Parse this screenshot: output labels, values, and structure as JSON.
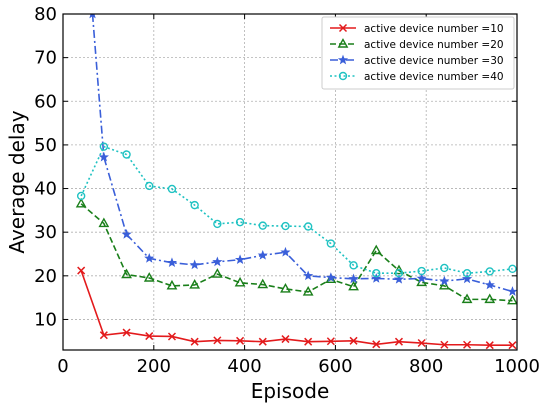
{
  "chart_data": {
    "type": "line",
    "xlabel": "Episode",
    "ylabel": "Average delay",
    "xlim": [
      0,
      1000
    ],
    "ylim": [
      3,
      80
    ],
    "xticks": [
      0,
      200,
      400,
      600,
      800,
      1000
    ],
    "yticks": [
      10,
      20,
      30,
      40,
      50,
      60,
      70,
      80
    ],
    "grid": true,
    "legend_position": "top-right",
    "series": [
      {
        "name": "active device number =10",
        "color": "#e31a1c",
        "marker": "x",
        "line": "solid",
        "x": [
          40,
          90,
          140,
          190,
          240,
          290,
          340,
          390,
          440,
          490,
          540,
          590,
          640,
          690,
          740,
          790,
          840,
          890,
          940,
          990
        ],
        "y": [
          21.2,
          6.4,
          7.0,
          6.2,
          6.1,
          4.9,
          5.2,
          5.1,
          4.9,
          5.5,
          4.9,
          5.0,
          5.1,
          4.3,
          4.9,
          4.6,
          4.2,
          4.2,
          4.1,
          4.1
        ]
      },
      {
        "name": "active device number =20",
        "color": "#1a7f1a",
        "marker": "triangle",
        "line": "dashed",
        "x": [
          40,
          90,
          140,
          190,
          240,
          290,
          340,
          390,
          440,
          490,
          540,
          590,
          640,
          690,
          740,
          790,
          840,
          890,
          940,
          990
        ],
        "y": [
          36.5,
          32.0,
          20.3,
          19.5,
          17.7,
          17.9,
          20.4,
          18.4,
          18.0,
          17.0,
          16.3,
          19.2,
          17.5,
          25.8,
          21.2,
          18.5,
          17.7,
          14.6,
          14.6,
          14.3
        ]
      },
      {
        "name": "active device number =30",
        "color": "#3a5fd9",
        "marker": "star",
        "line": "dashdot",
        "x": [
          65,
          90,
          140,
          190,
          240,
          290,
          340,
          390,
          440,
          490,
          540,
          590,
          640,
          690,
          740,
          790,
          840,
          890,
          940,
          990
        ],
        "y": [
          80.0,
          47.2,
          29.5,
          24.0,
          23.0,
          22.5,
          23.2,
          23.7,
          24.7,
          25.4,
          20.0,
          19.6,
          19.3,
          19.4,
          19.2,
          19.4,
          18.8,
          19.3,
          17.9,
          16.4
        ]
      },
      {
        "name": "active device number =40",
        "color": "#1fc2c2",
        "marker": "circle",
        "line": "dotted",
        "x": [
          40,
          90,
          140,
          190,
          240,
          290,
          340,
          390,
          440,
          490,
          540,
          590,
          640,
          690,
          740,
          790,
          840,
          890,
          940,
          990
        ],
        "y": [
          38.3,
          49.6,
          47.8,
          40.6,
          39.9,
          36.2,
          31.9,
          32.3,
          31.5,
          31.4,
          31.3,
          27.4,
          22.4,
          20.6,
          20.6,
          21.1,
          21.8,
          20.6,
          21.0,
          21.6
        ]
      }
    ]
  }
}
